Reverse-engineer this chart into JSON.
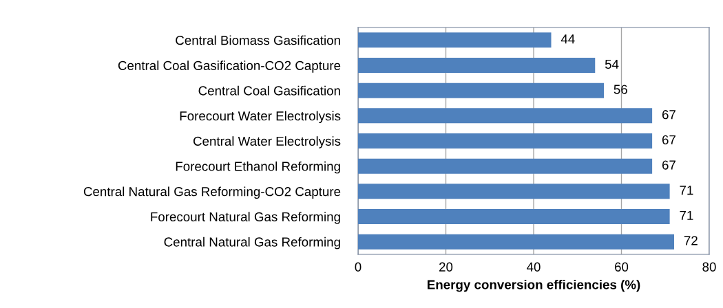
{
  "chart_data": {
    "type": "bar",
    "orientation": "horizontal",
    "xlabel": "Energy conversion efficiencies (%)",
    "categories": [
      "Central Biomass Gasification",
      "Central Coal Gasification-CO2 Capture",
      "Central Coal Gasification",
      "Forecourt Water Electrolysis",
      "Central Water Electrolysis",
      "Forecourt Ethanol Reforming",
      "Central Natural Gas Reforming-CO2 Capture",
      "Forecourt Natural Gas Reforming",
      "Central Natural Gas Reforming"
    ],
    "values": [
      44,
      54,
      56,
      67,
      67,
      67,
      71,
      71,
      72
    ],
    "color": "#4f81bd",
    "xlim": [
      0,
      80
    ],
    "xticks": [
      0,
      20,
      40,
      60,
      80
    ],
    "grid": "x",
    "data_labels": true
  }
}
